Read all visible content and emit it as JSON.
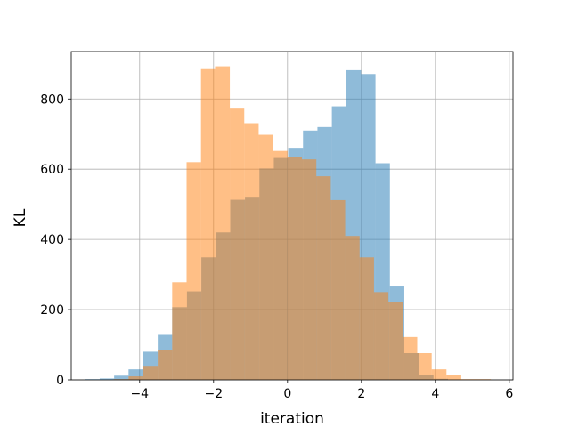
{
  "chart_data": {
    "type": "histogram",
    "title": "",
    "xlabel": "iteration",
    "ylabel": "KL",
    "xlim": [
      -5.85,
      6.1
    ],
    "ylim": [
      0,
      935
    ],
    "grid": true,
    "legend": "none",
    "xticks": [
      -4,
      -2,
      0,
      2,
      4,
      6
    ],
    "xtick_labels": [
      "−4",
      "−2",
      "0",
      "2",
      "4",
      "6"
    ],
    "yticks": [
      0,
      200,
      400,
      600,
      800
    ],
    "ytick_labels": [
      "0",
      "200",
      "400",
      "600",
      "800"
    ],
    "series": [
      {
        "color": "#1f77b4",
        "opacity": 0.5,
        "bins": [
          [
            -5.47,
            -5.08,
            2
          ],
          [
            -5.08,
            -4.69,
            4
          ],
          [
            -4.69,
            -4.3,
            12
          ],
          [
            -4.3,
            -3.9,
            30
          ],
          [
            -3.9,
            -3.51,
            80
          ],
          [
            -3.51,
            -3.12,
            128
          ],
          [
            -3.12,
            -2.72,
            207
          ],
          [
            -2.72,
            -2.33,
            252
          ],
          [
            -2.33,
            -1.94,
            349
          ],
          [
            -1.94,
            -1.55,
            420
          ],
          [
            -1.55,
            -1.15,
            513
          ],
          [
            -1.15,
            -0.76,
            519
          ],
          [
            -0.76,
            -0.37,
            602
          ],
          [
            -0.37,
            0.02,
            632
          ],
          [
            0.02,
            0.42,
            661
          ],
          [
            0.42,
            0.81,
            710
          ],
          [
            0.81,
            1.2,
            720
          ],
          [
            1.2,
            1.59,
            779
          ],
          [
            1.59,
            1.99,
            882
          ],
          [
            1.99,
            2.38,
            871
          ],
          [
            2.38,
            2.77,
            617
          ],
          [
            2.77,
            3.16,
            266
          ],
          [
            3.16,
            3.56,
            76
          ],
          [
            3.56,
            3.95,
            15
          ],
          [
            3.95,
            4.34,
            3
          ]
        ]
      },
      {
        "color": "#ff7f0e",
        "opacity": 0.5,
        "bins": [
          [
            -4.7,
            -4.3,
            2
          ],
          [
            -4.3,
            -3.9,
            10
          ],
          [
            -3.9,
            -3.51,
            40
          ],
          [
            -3.51,
            -3.12,
            84
          ],
          [
            -3.12,
            -2.73,
            278
          ],
          [
            -2.73,
            -2.34,
            620
          ],
          [
            -2.34,
            -1.96,
            885
          ],
          [
            -1.96,
            -1.56,
            893
          ],
          [
            -1.56,
            -1.17,
            775
          ],
          [
            -1.17,
            -0.78,
            731
          ],
          [
            -0.78,
            -0.39,
            698
          ],
          [
            -0.39,
            0.0,
            652
          ],
          [
            0.0,
            0.39,
            636
          ],
          [
            0.39,
            0.78,
            628
          ],
          [
            0.78,
            1.17,
            580
          ],
          [
            1.17,
            1.56,
            512
          ],
          [
            1.56,
            1.95,
            410
          ],
          [
            1.95,
            2.34,
            349
          ],
          [
            2.34,
            2.73,
            250
          ],
          [
            2.73,
            3.12,
            222
          ],
          [
            3.12,
            3.51,
            122
          ],
          [
            3.51,
            3.9,
            76
          ],
          [
            3.9,
            4.3,
            30
          ],
          [
            4.3,
            4.7,
            14
          ],
          [
            4.7,
            5.5,
            2
          ]
        ]
      }
    ]
  }
}
